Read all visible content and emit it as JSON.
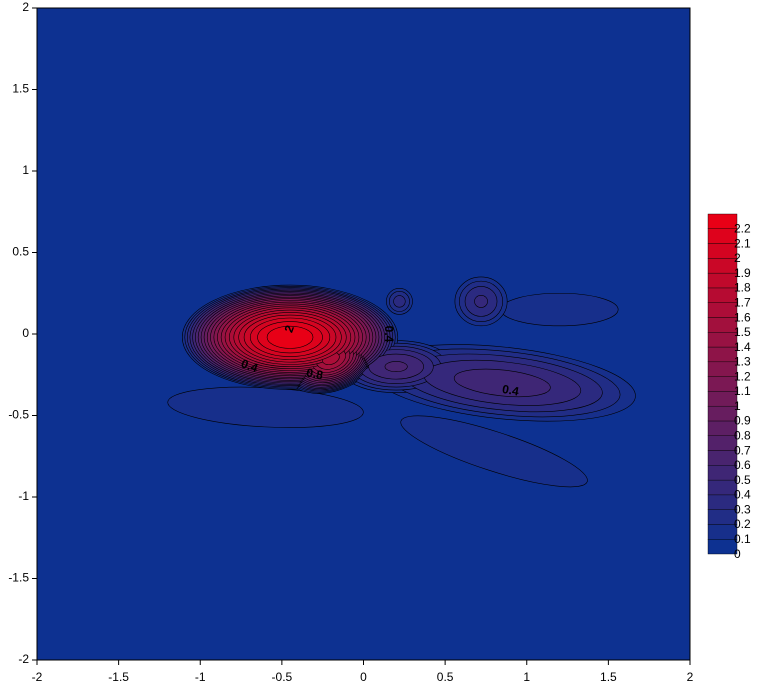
{
  "chart_data": {
    "type": "contour",
    "xlim": [
      -2,
      2
    ],
    "ylim": [
      -2,
      2
    ],
    "xticks": [
      -2,
      -1.5,
      -1,
      -0.5,
      0,
      0.5,
      1,
      1.5,
      2
    ],
    "yticks": [
      -2,
      -1.5,
      -1,
      -0.5,
      0,
      0.5,
      1,
      1.5,
      2
    ],
    "levels": [
      0,
      0.1,
      0.2,
      0.3,
      0.4,
      0.5,
      0.6,
      0.7,
      0.8,
      0.9,
      1,
      1.1,
      1.2,
      1.3,
      1.4,
      1.5,
      1.6,
      1.7,
      1.8,
      1.9,
      2,
      2.1,
      2.2
    ],
    "colors": [
      "#0d3191",
      "#172f8b",
      "#212d86",
      "#2b2a80",
      "#35287b",
      "#3f2675",
      "#49246f",
      "#53216a",
      "#5d1f64",
      "#671d5f",
      "#711b59",
      "#7b1854",
      "#84164e",
      "#8e1448",
      "#981243",
      "#a2103d",
      "#ac0d38",
      "#b60b32",
      "#c0092c",
      "#ca0727",
      "#d40421",
      "#de021c",
      "#e80016"
    ],
    "contour_labels": [
      2,
      0.4,
      0.8,
      0.4,
      0.4
    ]
  }
}
